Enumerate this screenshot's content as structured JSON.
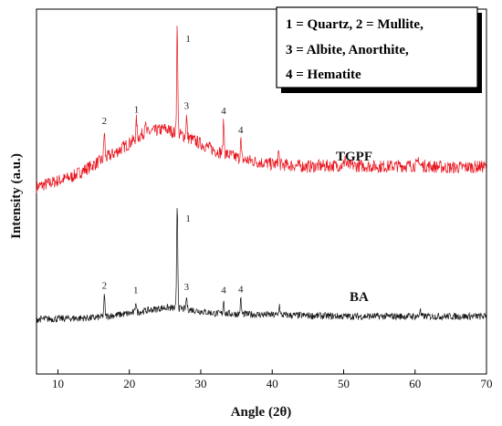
{
  "chart_data": {
    "type": "line",
    "xlabel": "Angle (2θ)",
    "ylabel": "Intensity (a.u.)",
    "xlim": [
      7,
      70
    ],
    "x_ticks": [
      10,
      20,
      30,
      40,
      50,
      60,
      70
    ],
    "y_ticks_shown": false,
    "grid": false,
    "legend": {
      "placement": "top-right",
      "lines": [
        "1 = Quartz, 2 = Mullite,",
        "3 = Albite, Anorthite,",
        "4 = Hematite"
      ]
    },
    "series": [
      {
        "name": "TGPF",
        "color": "#e8111a",
        "baseline": [
          [
            7,
            0.0
          ],
          [
            12,
            0.45
          ],
          [
            18,
            1.5
          ],
          [
            22,
            2.35
          ],
          [
            25,
            2.55
          ],
          [
            28,
            2.2
          ],
          [
            32,
            1.6
          ],
          [
            36,
            1.2
          ],
          [
            40,
            1.0
          ],
          [
            45,
            0.9
          ],
          [
            50,
            0.95
          ],
          [
            55,
            0.9
          ],
          [
            60,
            0.95
          ],
          [
            65,
            0.85
          ],
          [
            70,
            0.9
          ]
        ],
        "noise": 0.28,
        "peaks": [
          {
            "x": 16.5,
            "height": 1.2,
            "label": "2"
          },
          {
            "x": 21.0,
            "height": 0.8,
            "label": "1"
          },
          {
            "x": 22.2,
            "height": 0.6
          },
          {
            "x": 26.7,
            "height": 4.8,
            "label": "1"
          },
          {
            "x": 28.0,
            "height": 0.9,
            "label": "3"
          },
          {
            "x": 33.2,
            "height": 1.4,
            "label": "4"
          },
          {
            "x": 35.6,
            "height": 0.8,
            "label": "4"
          },
          {
            "x": 40.9,
            "height": 0.6
          },
          {
            "x": 50.2,
            "height": 0.4
          },
          {
            "x": 60.5,
            "height": 0.35
          }
        ]
      },
      {
        "name": "BA",
        "color": "#111111",
        "baseline": [
          [
            7,
            0.0
          ],
          [
            15,
            0.05
          ],
          [
            20,
            0.2
          ],
          [
            25,
            0.4
          ],
          [
            28,
            0.35
          ],
          [
            32,
            0.2
          ],
          [
            40,
            0.15
          ],
          [
            50,
            0.1
          ],
          [
            60,
            0.1
          ],
          [
            70,
            0.1
          ]
        ],
        "noise": 0.12,
        "peaks": [
          {
            "x": 16.5,
            "height": 0.7,
            "label": "2"
          },
          {
            "x": 20.9,
            "height": 0.4,
            "label": "1"
          },
          {
            "x": 26.7,
            "height": 3.6,
            "label": "1"
          },
          {
            "x": 28.0,
            "height": 0.4,
            "label": "3"
          },
          {
            "x": 33.2,
            "height": 0.45,
            "label": "4"
          },
          {
            "x": 35.6,
            "height": 0.5,
            "label": "4"
          },
          {
            "x": 41.0,
            "height": 0.35
          },
          {
            "x": 60.7,
            "height": 0.25
          }
        ]
      }
    ]
  }
}
